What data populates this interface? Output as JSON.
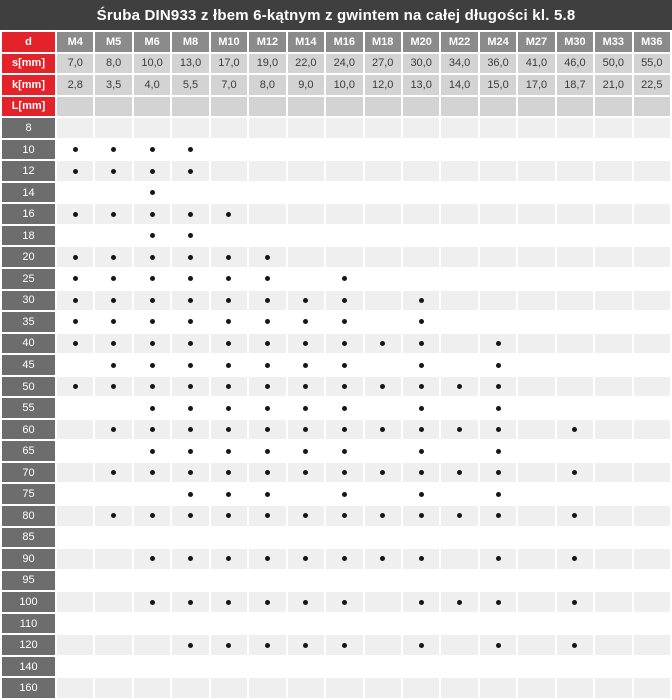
{
  "title": "Śruba DIN933 z łbem 6-kątnym z gwintem na całej długości kl. 5.8",
  "colors": {
    "title_bar_bg": "#3f3f3f",
    "label_red": "#e32329",
    "size_header_bg": "#8b8b8b",
    "dimension_cell_bg": "#d3d3d3",
    "length_label_bg": "#6d6d6d",
    "row_alt_bg": "#efefef",
    "row_bg": "#ffffff",
    "dot": "#161616"
  },
  "table": {
    "d_label": "d",
    "sizes": [
      "M4",
      "M5",
      "M6",
      "M8",
      "M10",
      "M12",
      "M14",
      "M16",
      "M18",
      "M20",
      "M22",
      "M24",
      "M27",
      "M30",
      "M33",
      "M36"
    ],
    "s_label": "s[mm]",
    "s_values": [
      "7,0",
      "8,0",
      "10,0",
      "13,0",
      "17,0",
      "19,0",
      "22,0",
      "24,0",
      "27,0",
      "30,0",
      "34,0",
      "36,0",
      "41,0",
      "46,0",
      "50,0",
      "55,0"
    ],
    "k_label": "k[mm]",
    "k_values": [
      "2,8",
      "3,5",
      "4,0",
      "5,5",
      "7,0",
      "8,0",
      "9,0",
      "10,0",
      "12,0",
      "13,0",
      "14,0",
      "15,0",
      "17,0",
      "18,7",
      "21,0",
      "22,5"
    ],
    "l_label": "L[mm]",
    "availability_marker": "•",
    "length_rows": [
      {
        "length": "8",
        "available": []
      },
      {
        "length": "10",
        "available": [
          "M4",
          "M5",
          "M6",
          "M8"
        ]
      },
      {
        "length": "12",
        "available": [
          "M4",
          "M5",
          "M6",
          "M8"
        ]
      },
      {
        "length": "14",
        "available": [
          "M6"
        ]
      },
      {
        "length": "16",
        "available": [
          "M4",
          "M5",
          "M6",
          "M8",
          "M10"
        ]
      },
      {
        "length": "18",
        "available": [
          "M6",
          "M8"
        ]
      },
      {
        "length": "20",
        "available": [
          "M4",
          "M5",
          "M6",
          "M8",
          "M10",
          "M12"
        ]
      },
      {
        "length": "25",
        "available": [
          "M4",
          "M5",
          "M6",
          "M8",
          "M10",
          "M12",
          "M16"
        ]
      },
      {
        "length": "30",
        "available": [
          "M4",
          "M5",
          "M6",
          "M8",
          "M10",
          "M12",
          "M14",
          "M16",
          "M20"
        ]
      },
      {
        "length": "35",
        "available": [
          "M4",
          "M5",
          "M6",
          "M8",
          "M10",
          "M12",
          "M14",
          "M16",
          "M20"
        ]
      },
      {
        "length": "40",
        "available": [
          "M4",
          "M5",
          "M6",
          "M8",
          "M10",
          "M12",
          "M14",
          "M16",
          "M18",
          "M20",
          "M24"
        ]
      },
      {
        "length": "45",
        "available": [
          "M5",
          "M6",
          "M8",
          "M10",
          "M12",
          "M14",
          "M16",
          "M20",
          "M24"
        ]
      },
      {
        "length": "50",
        "available": [
          "M4",
          "M5",
          "M6",
          "M8",
          "M10",
          "M12",
          "M14",
          "M16",
          "M18",
          "M20",
          "M22",
          "M24"
        ]
      },
      {
        "length": "55",
        "available": [
          "M6",
          "M8",
          "M10",
          "M12",
          "M14",
          "M16",
          "M20",
          "M24"
        ]
      },
      {
        "length": "60",
        "available": [
          "M5",
          "M6",
          "M8",
          "M10",
          "M12",
          "M14",
          "M16",
          "M18",
          "M20",
          "M22",
          "M24",
          "M30"
        ]
      },
      {
        "length": "65",
        "available": [
          "M6",
          "M8",
          "M10",
          "M12",
          "M14",
          "M16",
          "M20",
          "M24"
        ]
      },
      {
        "length": "70",
        "available": [
          "M5",
          "M6",
          "M8",
          "M10",
          "M12",
          "M14",
          "M16",
          "M18",
          "M20",
          "M22",
          "M24",
          "M30"
        ]
      },
      {
        "length": "75",
        "available": [
          "M8",
          "M10",
          "M12",
          "M16",
          "M20",
          "M24"
        ]
      },
      {
        "length": "80",
        "available": [
          "M5",
          "M6",
          "M8",
          "M10",
          "M12",
          "M14",
          "M16",
          "M18",
          "M20",
          "M22",
          "M24",
          "M30"
        ]
      },
      {
        "length": "85",
        "available": []
      },
      {
        "length": "90",
        "available": [
          "M6",
          "M8",
          "M10",
          "M12",
          "M14",
          "M16",
          "M18",
          "M20",
          "M24",
          "M30"
        ]
      },
      {
        "length": "95",
        "available": []
      },
      {
        "length": "100",
        "available": [
          "M6",
          "M8",
          "M10",
          "M12",
          "M14",
          "M16",
          "M20",
          "M22",
          "M24",
          "M30"
        ]
      },
      {
        "length": "110",
        "available": []
      },
      {
        "length": "120",
        "available": [
          "M8",
          "M10",
          "M12",
          "M14",
          "M16",
          "M20",
          "M24",
          "M30"
        ]
      },
      {
        "length": "140",
        "available": []
      },
      {
        "length": "160",
        "available": []
      }
    ]
  }
}
